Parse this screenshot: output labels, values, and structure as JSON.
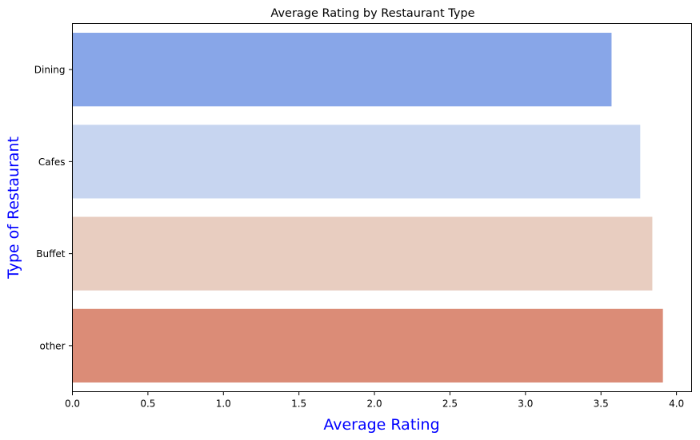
{
  "chart_data": {
    "type": "bar",
    "orientation": "horizontal",
    "title": "Average Rating by Restaurant Type",
    "xlabel": "Average Rating",
    "ylabel": "Type of Restaurant",
    "axis_label_color": "#0000ff",
    "categories": [
      "Dining",
      "Cafes",
      "Buffet",
      "other"
    ],
    "values": [
      3.57,
      3.76,
      3.84,
      3.91
    ],
    "colors": [
      "#88a6e8",
      "#c7d5f0",
      "#e8cdc0",
      "#db8c77"
    ],
    "xlim": [
      0,
      4.1
    ],
    "xticks": [
      0.0,
      0.5,
      1.0,
      1.5,
      2.0,
      2.5,
      3.0,
      3.5,
      4.0
    ],
    "xtick_labels": [
      "0.0",
      "0.5",
      "1.0",
      "1.5",
      "2.0",
      "2.5",
      "3.0",
      "3.5",
      "4.0"
    ],
    "grid": false,
    "legend": "none"
  }
}
